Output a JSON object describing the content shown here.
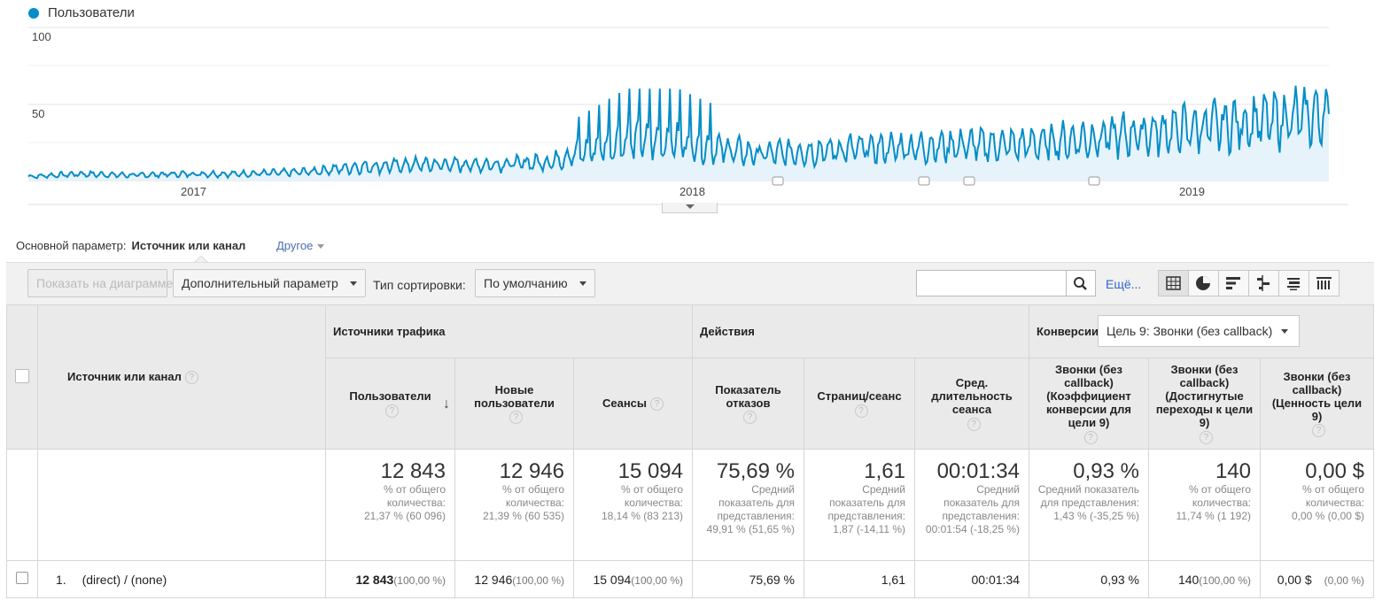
{
  "chart": {
    "legend": "Пользователи",
    "y_ticks": [
      "100",
      "50"
    ],
    "x_ticks": [
      "2017",
      "2018",
      "2019"
    ]
  },
  "chart_data": {
    "type": "area",
    "series": [
      {
        "name": "Пользователи"
      }
    ],
    "ylim": [
      0,
      100
    ],
    "xlabels": [
      "2017",
      "2018",
      "2019"
    ],
    "trend": [
      [
        0,
        3
      ],
      [
        0.04,
        5
      ],
      [
        0.08,
        4
      ],
      [
        0.12,
        5
      ],
      [
        0.16,
        5
      ],
      [
        0.2,
        6
      ],
      [
        0.22,
        7
      ],
      [
        0.25,
        10
      ],
      [
        0.3,
        12
      ],
      [
        0.35,
        12
      ],
      [
        0.4,
        14
      ],
      [
        0.42,
        20
      ],
      [
        0.46,
        30
      ],
      [
        0.5,
        30
      ],
      [
        0.52,
        26
      ],
      [
        0.56,
        20
      ],
      [
        0.6,
        22
      ],
      [
        0.64,
        24
      ],
      [
        0.68,
        25
      ],
      [
        0.72,
        27
      ],
      [
        0.76,
        27
      ],
      [
        0.8,
        30
      ],
      [
        0.84,
        34
      ],
      [
        0.88,
        38
      ],
      [
        0.92,
        42
      ],
      [
        0.96,
        46
      ],
      [
        1.0,
        50
      ]
    ],
    "color": "#058dc7"
  },
  "dimension": {
    "label": "Основной параметр:",
    "value": "Источник или канал",
    "other": "Другое"
  },
  "toolbar": {
    "plot_label": "Показать на диаграмме",
    "secondary_label": "Дополнительный параметр",
    "sort_label": "Тип сортировки:",
    "sort_value": "По умолчанию",
    "more_label": "Ещё..."
  },
  "table": {
    "groups": {
      "acquisition": "Источники трафика",
      "behavior": "Действия",
      "conversions": "Конверсии",
      "goal_select": "Цель 9: Звонки (без callback)"
    },
    "dim_header": "Источник или канал",
    "headers": [
      "Пользователи",
      "Новые пользователи",
      "Сеансы",
      "Показатель отказов",
      "Страниц/сеанс",
      "Сред. длительность сеанса",
      "Звонки (без callback) (Коэффициент конверсии для цели 9)",
      "Звонки (без callback) (Достигнутые переходы к цели 9)",
      "Звонки (без callback) (Ценность цели 9)"
    ],
    "totals": [
      {
        "value": "12 843",
        "sub1": "% от общего количества:",
        "sub2": "21,37 % (60 096)"
      },
      {
        "value": "12 946",
        "sub1": "% от общего количества:",
        "sub2": "21,39 % (60 535)"
      },
      {
        "value": "15 094",
        "sub1": "% от общего количества:",
        "sub2": "18,14 % (83 213)"
      },
      {
        "value": "75,69 %",
        "sub1": "Средний показатель для представления:",
        "sub2": "49,91 % (51,65 %)"
      },
      {
        "value": "1,61",
        "sub1": "Средний показатель для представления:",
        "sub2": "1,87 (-14,11 %)"
      },
      {
        "value": "00:01:34",
        "sub1": "Средний показатель для представления:",
        "sub2": "00:01:54 (-18,25 %)"
      },
      {
        "value": "0,93 %",
        "sub1": "Средний показатель для представления:",
        "sub2": "1,43 % (-35,25 %)"
      },
      {
        "value": "140",
        "sub1": "% от общего количества:",
        "sub2": "11,74 % (1 192)"
      },
      {
        "value": "0,00 $",
        "sub1": "% от общего количества:",
        "sub2": "0,00 % (0,00 $)"
      }
    ],
    "rows": [
      {
        "index": "1.",
        "source": "(direct) / (none)",
        "cells": [
          {
            "v": "12 843",
            "p": "(100,00 %)"
          },
          {
            "v": "12 946",
            "p": "(100,00 %)"
          },
          {
            "v": "15 094",
            "p": "(100,00 %)"
          },
          {
            "v": "75,69 %",
            "p": ""
          },
          {
            "v": "1,61",
            "p": ""
          },
          {
            "v": "00:01:34",
            "p": ""
          },
          {
            "v": "0,93 %",
            "p": ""
          },
          {
            "v": "140",
            "p": "(100,00 %)"
          },
          {
            "v": "0,00 $",
            "p": "(0,00 %)"
          }
        ]
      }
    ]
  }
}
